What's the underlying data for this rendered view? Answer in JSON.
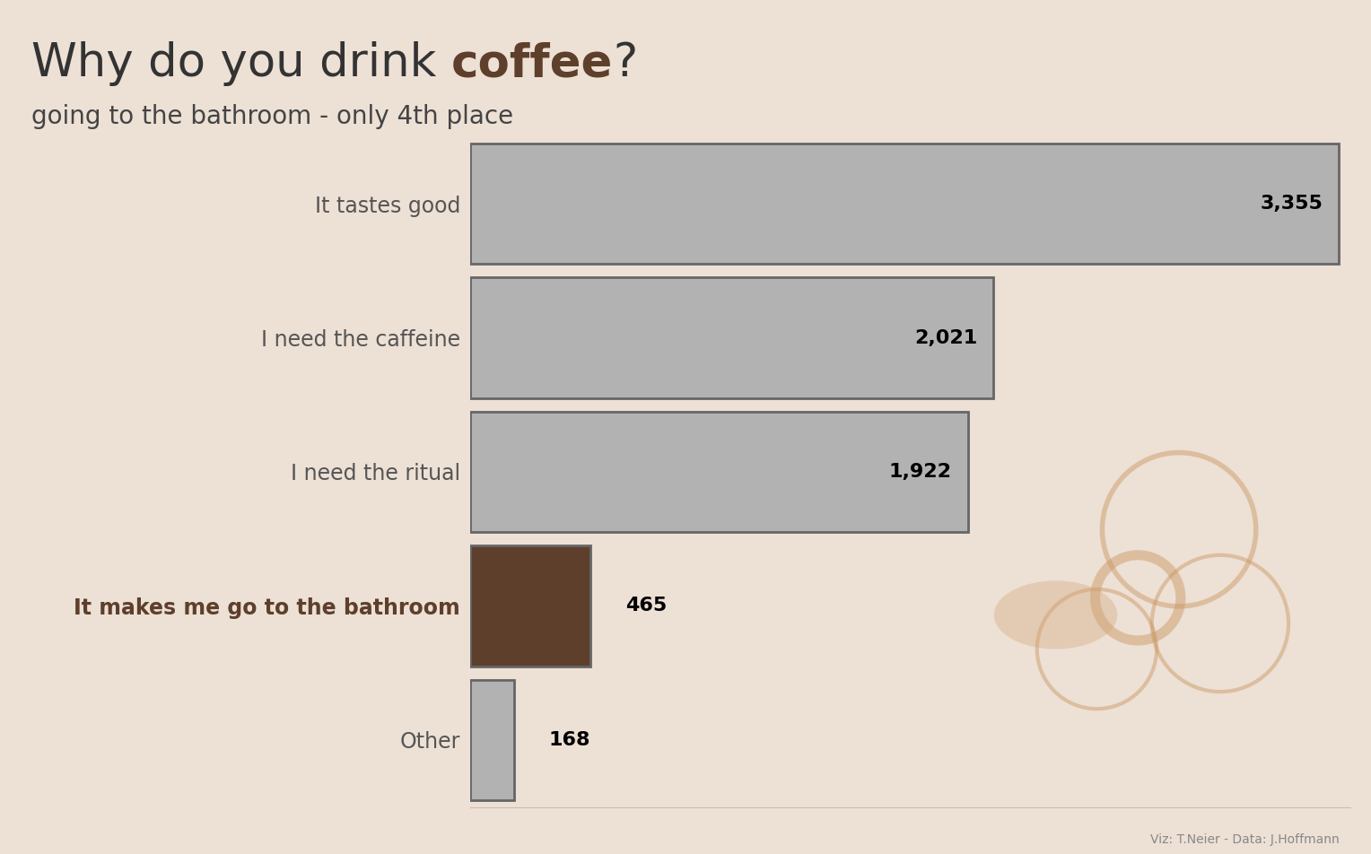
{
  "chart_data": {
    "type": "bar",
    "orientation": "horizontal",
    "title": "Why do you drink coffee?",
    "subtitle": "going to the bathroom - only 4th place",
    "source": "Viz: T.Neier - Data: J.Hoffmann",
    "categories": [
      "It tastes good",
      "I need the caffeine",
      "I need the ritual",
      "It makes me go to the bathroom",
      "Other"
    ],
    "values": [
      3355,
      2021,
      1922,
      465,
      168
    ],
    "value_labels": [
      "3,355",
      "2,021",
      "1,922",
      "465",
      "168"
    ],
    "colors": [
      "#b2b2b2",
      "#b2b2b2",
      "#b2b2b2",
      "#5e3f2c",
      "#b2b2b2"
    ],
    "xlim": [
      0,
      3400
    ],
    "xticks": [],
    "data_labels": true,
    "tick_labels": "y",
    "grid": false
  }
}
